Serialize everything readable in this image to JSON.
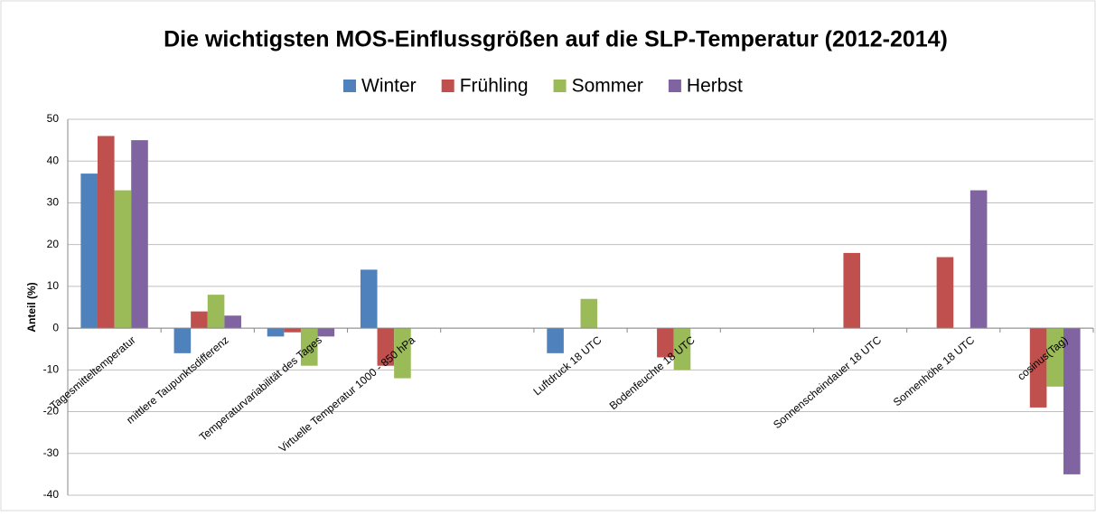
{
  "chart_data": {
    "type": "bar",
    "title": "Die wichtigsten MOS-Einflussgrößen auf die SLP-Temperatur (2012-2014)",
    "y_label": "Anteil (%)",
    "categories": [
      "Tagesmitteltemperatur",
      "mittlere Taupunktsdifferenz",
      "Temperaturvariabilität des Tages",
      "Virtuelle Temperatur 1000 - 850 hPa",
      null,
      "Luftdruck 18 UTC",
      "Bodenfeuchte 18 UTC",
      null,
      "Sonnenscheindauer 18 UTC",
      "Sonnenhöhe 18 UTC",
      "cosinus(Tag)"
    ],
    "series": [
      {
        "name": "Winter",
        "color": "#4f81bd",
        "values": [
          37,
          -6,
          -2,
          14,
          null,
          -6,
          null,
          null,
          null,
          null,
          null
        ]
      },
      {
        "name": "Frühling",
        "color": "#c0504d",
        "values": [
          46,
          4,
          -1,
          -9,
          null,
          null,
          -7,
          null,
          18,
          17,
          -19
        ]
      },
      {
        "name": "Sommer",
        "color": "#9bbb59",
        "values": [
          33,
          8,
          -9,
          -12,
          null,
          7,
          -10,
          null,
          null,
          null,
          -14
        ]
      },
      {
        "name": "Herbst",
        "color": "#8064a2",
        "values": [
          45,
          3,
          -2,
          null,
          null,
          null,
          null,
          null,
          null,
          33,
          -35
        ]
      }
    ],
    "ylim": [
      -40,
      50
    ],
    "yticks": [
      -40,
      -30,
      -20,
      -10,
      0,
      10,
      20,
      30,
      40,
      50
    ],
    "grid": true,
    "legend": "top"
  }
}
